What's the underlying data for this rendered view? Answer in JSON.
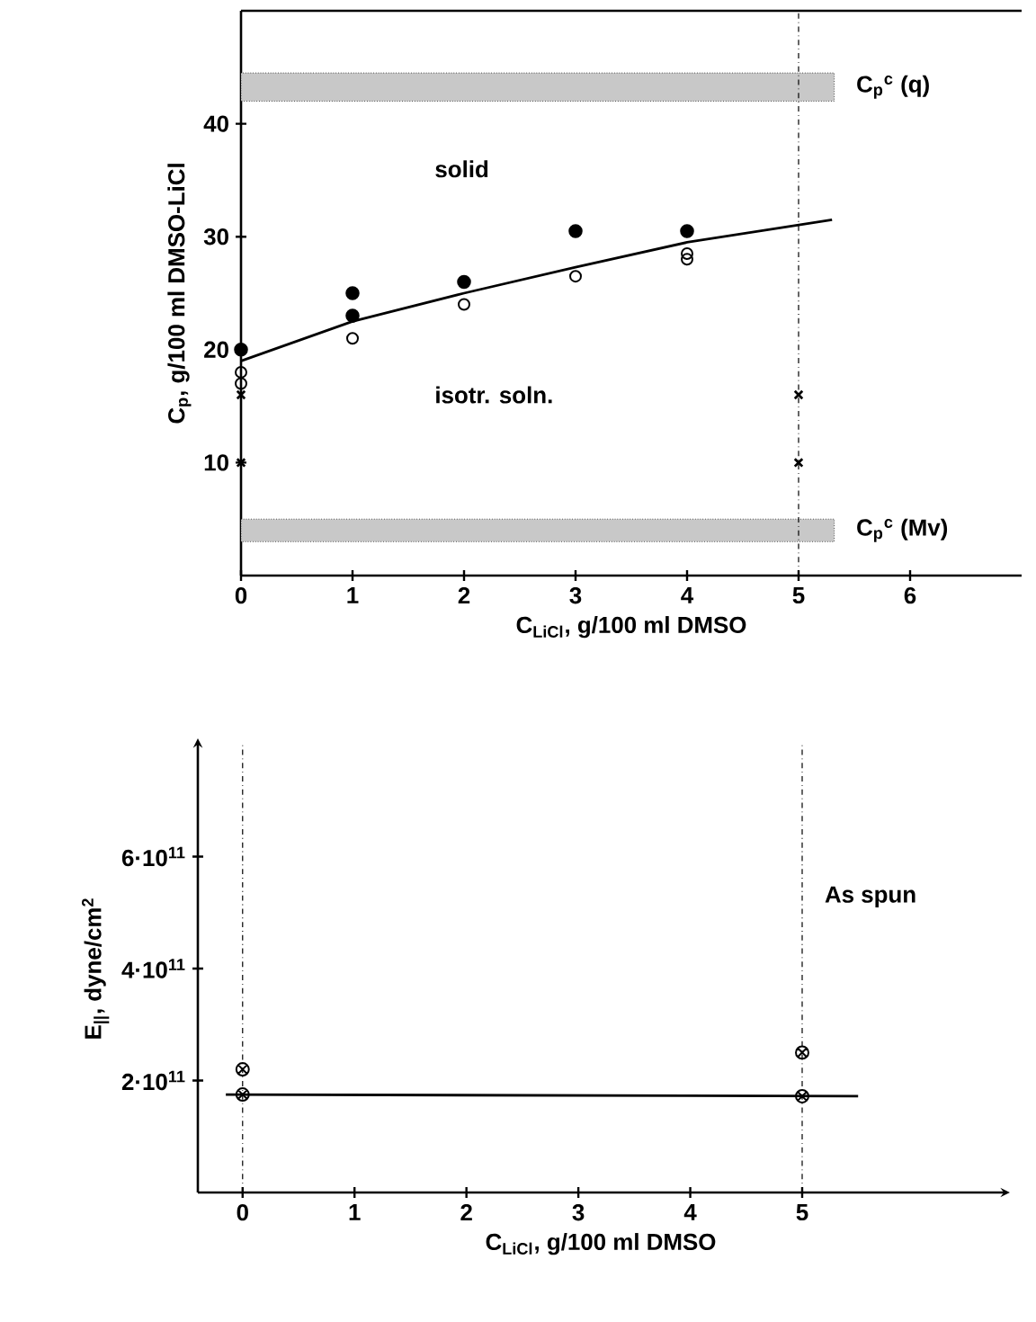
{
  "chart_data": [
    {
      "type": "scatter",
      "xlabel": "C$_{LiCl}$, g/100 ml DMSO",
      "ylabel": "C$_{p}$, g/100 ml DMSO-LiCl",
      "xlim": [
        0,
        7
      ],
      "ylim": [
        0,
        50
      ],
      "xticks": [
        0,
        1,
        2,
        3,
        4,
        5,
        6
      ],
      "yticks": [
        10,
        20,
        30,
        40
      ],
      "series": [
        {
          "marker": "circle",
          "color": "#000000",
          "x": [
            0,
            1,
            1,
            2,
            3,
            4
          ],
          "values": [
            20,
            25,
            23,
            26,
            30.5,
            30.5
          ]
        },
        {
          "marker": "circle-open",
          "color": "#000000",
          "x": [
            0,
            0,
            1,
            2,
            3,
            4,
            4
          ],
          "values": [
            18,
            17,
            21,
            24,
            26.5,
            28.5,
            28
          ]
        },
        {
          "marker": "cross",
          "color": "#000000",
          "x": [
            0,
            0,
            5,
            5
          ],
          "values": [
            16,
            10,
            16,
            10
          ]
        },
        {
          "type": "line",
          "marker": "none",
          "color": "#000000",
          "x": [
            0,
            1,
            2,
            3,
            4,
            5.3
          ],
          "values": [
            19,
            22.5,
            25,
            27.3,
            29.5,
            31.5
          ]
        }
      ],
      "bands": [
        {
          "axis": "y",
          "from": 42,
          "to": 44.5,
          "label": "C$_{p}$$^{c}$ (q)",
          "color": "#c8c8c8"
        },
        {
          "axis": "y",
          "from": 3,
          "to": 5,
          "label": "C$_{p}$$^{c}$ (Mv)",
          "color": "#c8c8c8"
        }
      ],
      "ref_lines": [
        {
          "axis": "x",
          "value": 5,
          "line_style": "dashed"
        }
      ],
      "annotations": [
        "solid",
        "isotr. soln."
      ]
    },
    {
      "type": "scatter",
      "xlabel": "C$_{LiCl}$, g/100 ml DMSO",
      "ylabel": "E$_{||}$, dyne/cm$^{2}$",
      "xlim": [
        -0.4,
        6.8
      ],
      "ylim": [
        0,
        800000000000
      ],
      "xticks": [
        0,
        1,
        2,
        3,
        4,
        5
      ],
      "yticks": [
        {
          "value": 200000000000,
          "label": "2·10$^{11}$"
        },
        {
          "value": 400000000000,
          "label": "4·10$^{11}$"
        },
        {
          "value": 600000000000,
          "label": "6·10$^{11}$"
        }
      ],
      "series": [
        {
          "color": "#000000",
          "x": [
            0,
            0,
            5,
            5
          ],
          "values": [
            175000000000,
            220000000000,
            250000000000,
            172000000000
          ]
        },
        {
          "type": "line",
          "marker": "none",
          "color": "#000000",
          "x": [
            -0.15,
            5.5
          ],
          "values": [
            175000000000,
            172000000000
          ]
        }
      ],
      "ref_lines": [
        {
          "axis": "x",
          "value": 0,
          "line_style": "dashed"
        },
        {
          "axis": "x",
          "value": 5,
          "line_style": "dashed"
        }
      ],
      "annotations": [
        "As spun"
      ]
    }
  ]
}
